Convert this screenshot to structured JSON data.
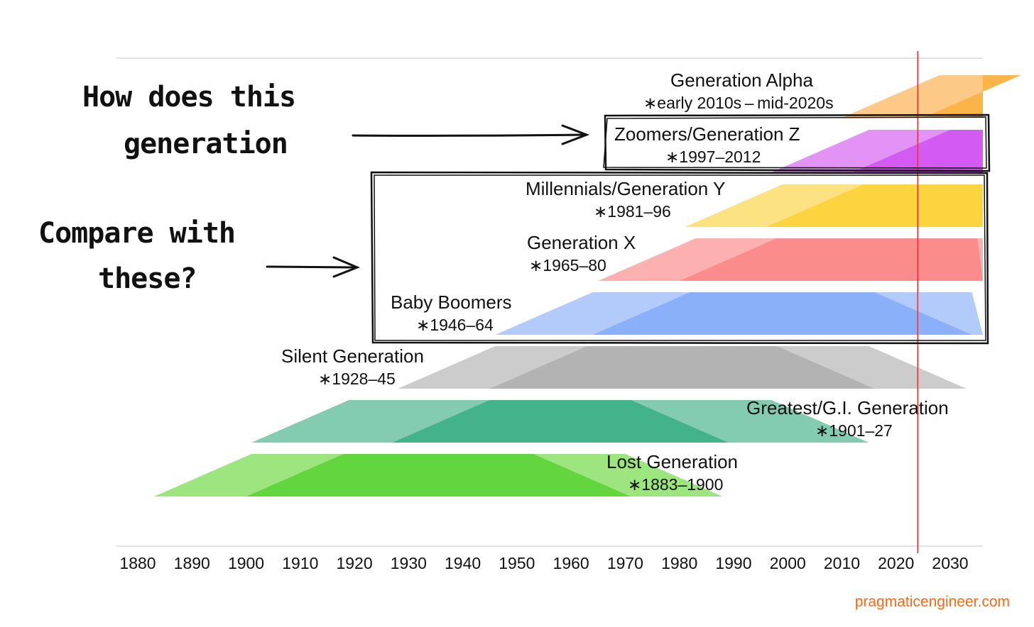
{
  "annotations": {
    "question_line1": "How does this",
    "question_line2": "generation",
    "compare_line1": "Compare with",
    "compare_line2": "these?"
  },
  "credit": "pragmaticengineer.com",
  "chart_data": {
    "type": "area",
    "x_ticks": [
      "1880",
      "1890",
      "1900",
      "1910",
      "1920",
      "1930",
      "1940",
      "1950",
      "1960",
      "1970",
      "1980",
      "1990",
      "2000",
      "2010",
      "2020",
      "2030"
    ],
    "xlim": [
      1876,
      2036
    ],
    "current_year_marker": 2024,
    "generations": [
      {
        "key": "lost",
        "name": "Lost Generation",
        "span": "∗1883–1900",
        "start": 1883,
        "end": 1900,
        "color_light": "#9de57f",
        "color_dark": "#63d63f"
      },
      {
        "key": "greatest",
        "name": "Greatest/G.I. Generation",
        "span": "∗1901–27",
        "start": 1901,
        "end": 1927,
        "color_light": "#83cbb1",
        "color_dark": "#42b38a"
      },
      {
        "key": "silent",
        "name": "Silent Generation",
        "span": "∗1928–45",
        "start": 1928,
        "end": 1945,
        "color_light": "#cccccc",
        "color_dark": "#b3b3b3"
      },
      {
        "key": "boomers",
        "name": "Baby Boomers",
        "span": "∗1946–64",
        "start": 1946,
        "end": 1964,
        "color_light": "#b3cbfb",
        "color_dark": "#8bb0fa"
      },
      {
        "key": "genx",
        "name": "Generation X",
        "span": "∗1965–80",
        "start": 1965,
        "end": 1980,
        "color_light": "#fdb0b0",
        "color_dark": "#fb8c8c"
      },
      {
        "key": "millennials",
        "name": "Millennials/Generation Y",
        "span": "∗1981–96",
        "start": 1981,
        "end": 1996,
        "color_light": "#fde281",
        "color_dark": "#fcd43f"
      },
      {
        "key": "genz",
        "name": "Zoomers/Generation Z",
        "span": "∗1997–2012",
        "start": 1997,
        "end": 2012,
        "color_light": "#e293f5",
        "color_dark": "#d35af2"
      },
      {
        "key": "alpha",
        "name": "Generation Alpha",
        "span": "∗early 2010s – mid-2020s",
        "start": 2010,
        "end": 2025,
        "color_light": "#fdc986",
        "color_dark": "#fbb447"
      }
    ]
  }
}
